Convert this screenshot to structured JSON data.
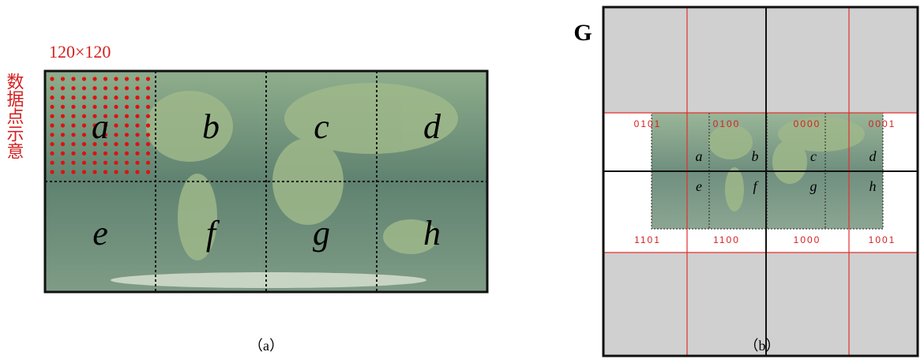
{
  "panel_a": {
    "size_label": "120×120",
    "side_label": "数据点示意",
    "tiles": [
      "a",
      "b",
      "c",
      "d",
      "e",
      "f",
      "g",
      "h"
    ],
    "caption": "（a）"
  },
  "panel_b": {
    "title": "G",
    "top_codes": [
      "0101",
      "0100",
      "0000",
      "0001"
    ],
    "bottom_codes": [
      "1101",
      "1100",
      "1000",
      "1001"
    ],
    "tiles": [
      "a",
      "b",
      "c",
      "d",
      "e",
      "f",
      "g",
      "h"
    ],
    "caption": "（b）"
  }
}
